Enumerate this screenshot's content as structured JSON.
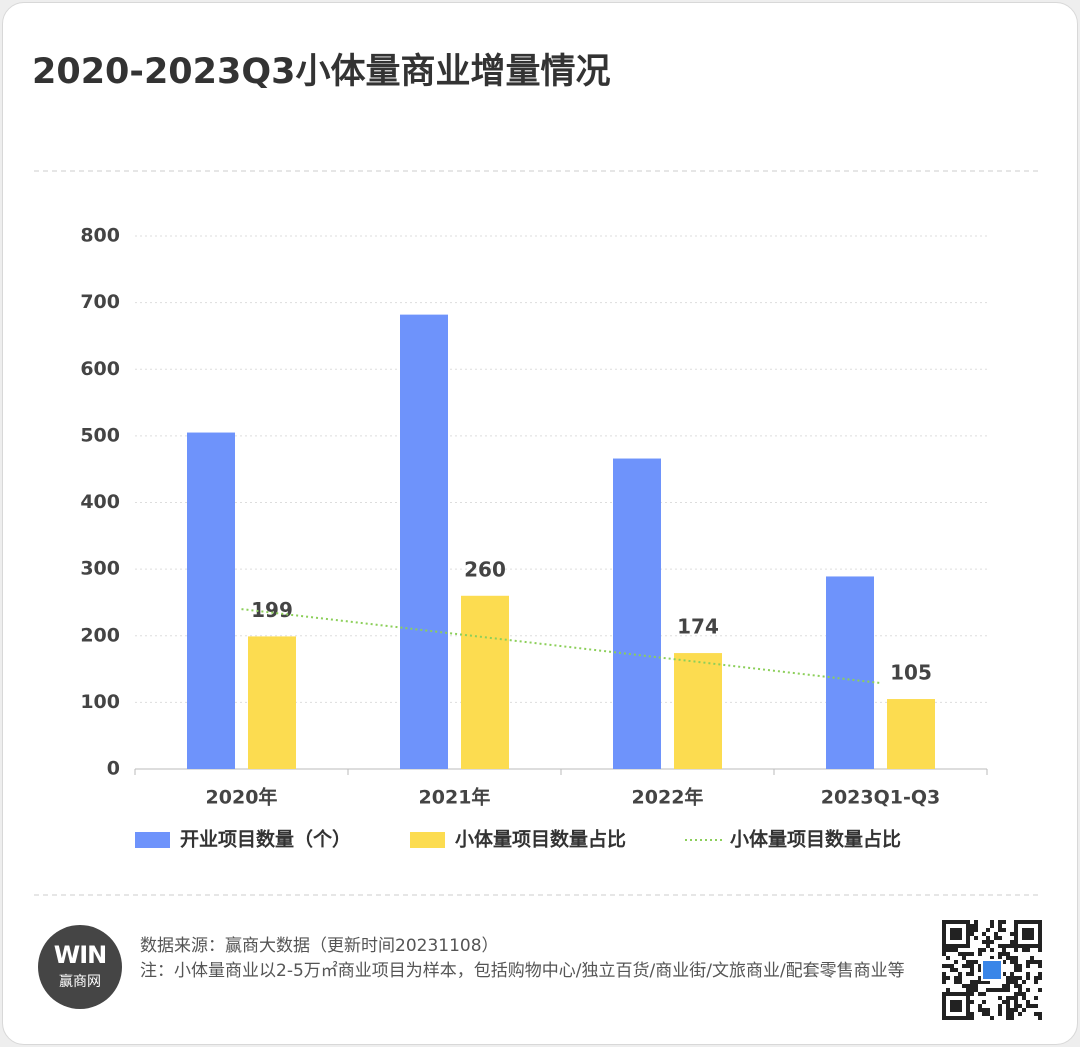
{
  "chart_data": {
    "type": "bar",
    "title": "2020-2023Q3小体量商业增量情况",
    "categories": [
      "2020年",
      "2021年",
      "2022年",
      "2023Q1-Q3"
    ],
    "series": [
      {
        "name": "开业项目数量（个）",
        "color": "#6e93fb",
        "values": [
          505,
          682,
          466,
          289
        ]
      },
      {
        "name": "小体量项目数量占比",
        "color": "#fcdc50",
        "values": [
          199,
          260,
          174,
          105
        ],
        "show_labels": true
      },
      {
        "name": "小体量项目数量占比",
        "color": "#8ccf5a",
        "type": "line",
        "style": "dotted",
        "values": [
          240,
          203,
          166,
          129
        ]
      }
    ],
    "ylim": [
      0,
      800
    ],
    "yticks": [
      0,
      100,
      200,
      300,
      400,
      500,
      600,
      700,
      800
    ],
    "grid": true,
    "legend": "bottom"
  },
  "footer": {
    "source": "数据来源：赢商大数据（更新时间20231108）",
    "note": "注：小体量商业以2-5万㎡商业项目为样本，包括购物中心/独立百货/商业街/文旅商业/配套零售商业等",
    "logo_mark": "WIN",
    "logo_name": "赢商网"
  }
}
